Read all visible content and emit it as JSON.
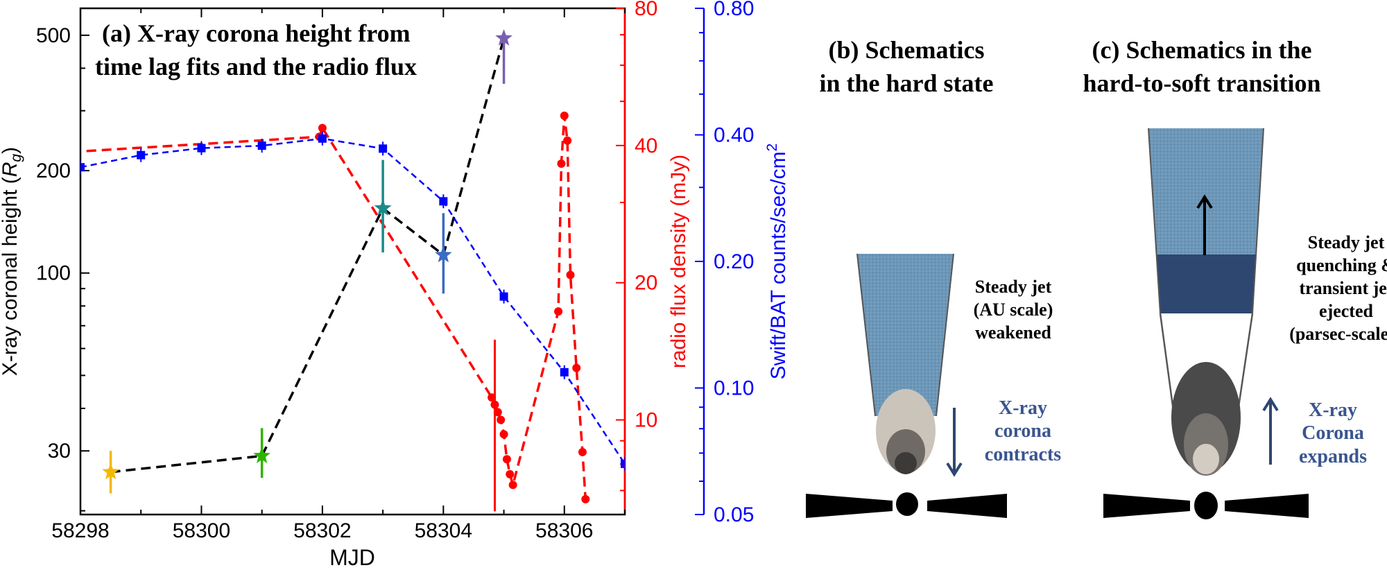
{
  "panel_a": {
    "title_line1": "(a) X-ray corona height from",
    "title_line2": "time lag fits and the radio flux",
    "chart_data": {
      "type": "line",
      "xlabel": "MJD",
      "xlim": [
        58298,
        58307
      ],
      "x_ticks": [
        "58298",
        "58300",
        "58302",
        "58304",
        "58306"
      ],
      "left_axis": {
        "label_prefix": "X-ray coronal height (",
        "label_symbol": "R",
        "label_subscript": "g",
        "label_suffix": ")",
        "scale": "log",
        "ylim": [
          19.5,
          600
        ],
        "ticks": [
          "30",
          "100",
          "200",
          "500"
        ],
        "color": "#000000"
      },
      "right_axis_radio": {
        "label": "radio flux density (mJy)",
        "scale": "log",
        "ylim": [
          6.2,
          80
        ],
        "ticks": [
          "10",
          "20",
          "40",
          "80"
        ],
        "color": "#ff0000"
      },
      "right_axis_bat": {
        "label": "Swift/BAT counts/sec/cm",
        "label_superscript": "2",
        "scale": "log",
        "ylim": [
          0.05,
          0.8
        ],
        "ticks": [
          "0.05",
          "0.10",
          "0.20",
          "0.40",
          "0.80"
        ],
        "color": "#0000ff"
      },
      "series": [
        {
          "axis": "left",
          "color": "#000000",
          "style": "dashed",
          "x": [
            58298.5,
            58301.0,
            58303.0,
            58304.0,
            58305.0
          ],
          "y": [
            26,
            29,
            155,
            113,
            490
          ]
        },
        {
          "axis": "right_radio",
          "color": "#ff0000",
          "style": "dashed-with-dots",
          "x": [
            58298.1,
            58301.95,
            58302.0,
            58304.8,
            58304.85,
            58304.9,
            58304.95,
            58305.0,
            58305.05,
            58305.1,
            58305.15,
            58305.9,
            58305.95,
            58306.0,
            58306.05,
            58306.1,
            58306.2,
            58306.3,
            58306.35
          ],
          "y": [
            38.9,
            41.8,
            43.7,
            11.2,
            10.8,
            10.4,
            10.0,
            9.3,
            8.2,
            7.6,
            7.2,
            17.3,
            36.5,
            46.5,
            41.0,
            20.8,
            13.0,
            8.5,
            6.7
          ]
        },
        {
          "axis": "right_bat",
          "color": "#0000ff",
          "style": "dashed-with-squares",
          "x": [
            58298,
            58299,
            58300,
            58301,
            58302,
            58303,
            58304,
            58305,
            58306,
            58307
          ],
          "y": [
            0.335,
            0.358,
            0.372,
            0.377,
            0.392,
            0.371,
            0.278,
            0.165,
            0.109,
            0.066
          ]
        }
      ],
      "markers": [
        {
          "x": 58298.5,
          "y": 26,
          "color": "#f5b800",
          "err_low": 22.5,
          "err_high": 30,
          "icon": "star-icon"
        },
        {
          "x": 58301.0,
          "y": 29,
          "color": "#2db400",
          "err_low": 25,
          "err_high": 35,
          "icon": "star-icon"
        },
        {
          "x": 58303.0,
          "y": 155,
          "color": "#1a8a8a",
          "err_low": 115,
          "err_high": 215,
          "icon": "star-icon"
        },
        {
          "x": 58304.0,
          "y": 113,
          "color": "#3b6bc4",
          "err_low": 87,
          "err_high": 150,
          "icon": "star-icon"
        },
        {
          "x": 58305.0,
          "y": 490,
          "color": "#7a60b0",
          "err_low": 360,
          "err_high": 490,
          "icon": "star-icon"
        }
      ],
      "radio_errorbar": {
        "x": 58304.85,
        "low": 6.3,
        "high": 15.0
      }
    }
  },
  "panel_b": {
    "title_line1": "(b) Schematics",
    "title_line2": "in the hard state",
    "jet_label": [
      "Steady jet",
      "(AU scale)",
      "weakened"
    ],
    "corona_label": [
      "X-ray",
      "corona",
      "contracts"
    ],
    "colors": {
      "jet": "#6d97b8",
      "corona_outer": "#cbc4ba",
      "corona_mid": "#6f6a66",
      "corona_inner": "#3c3a39",
      "label": "#3a5590"
    }
  },
  "panel_c": {
    "title_line1": "(c) Schematics in the",
    "title_line2": "hard-to-soft transition",
    "jet_label": [
      "Steady jet",
      "quenching &",
      "transient jet",
      "ejected",
      "(parsec-scale)"
    ],
    "corona_label": [
      "X-ray",
      "Corona",
      "expands"
    ],
    "colors": {
      "jet_light": "#6d97b8",
      "jet_dark": "#2e4770",
      "corona_outer": "#4a4a4a",
      "corona_mid": "#76726e",
      "corona_inner": "#d3ccc2",
      "label": "#3a5590"
    }
  }
}
